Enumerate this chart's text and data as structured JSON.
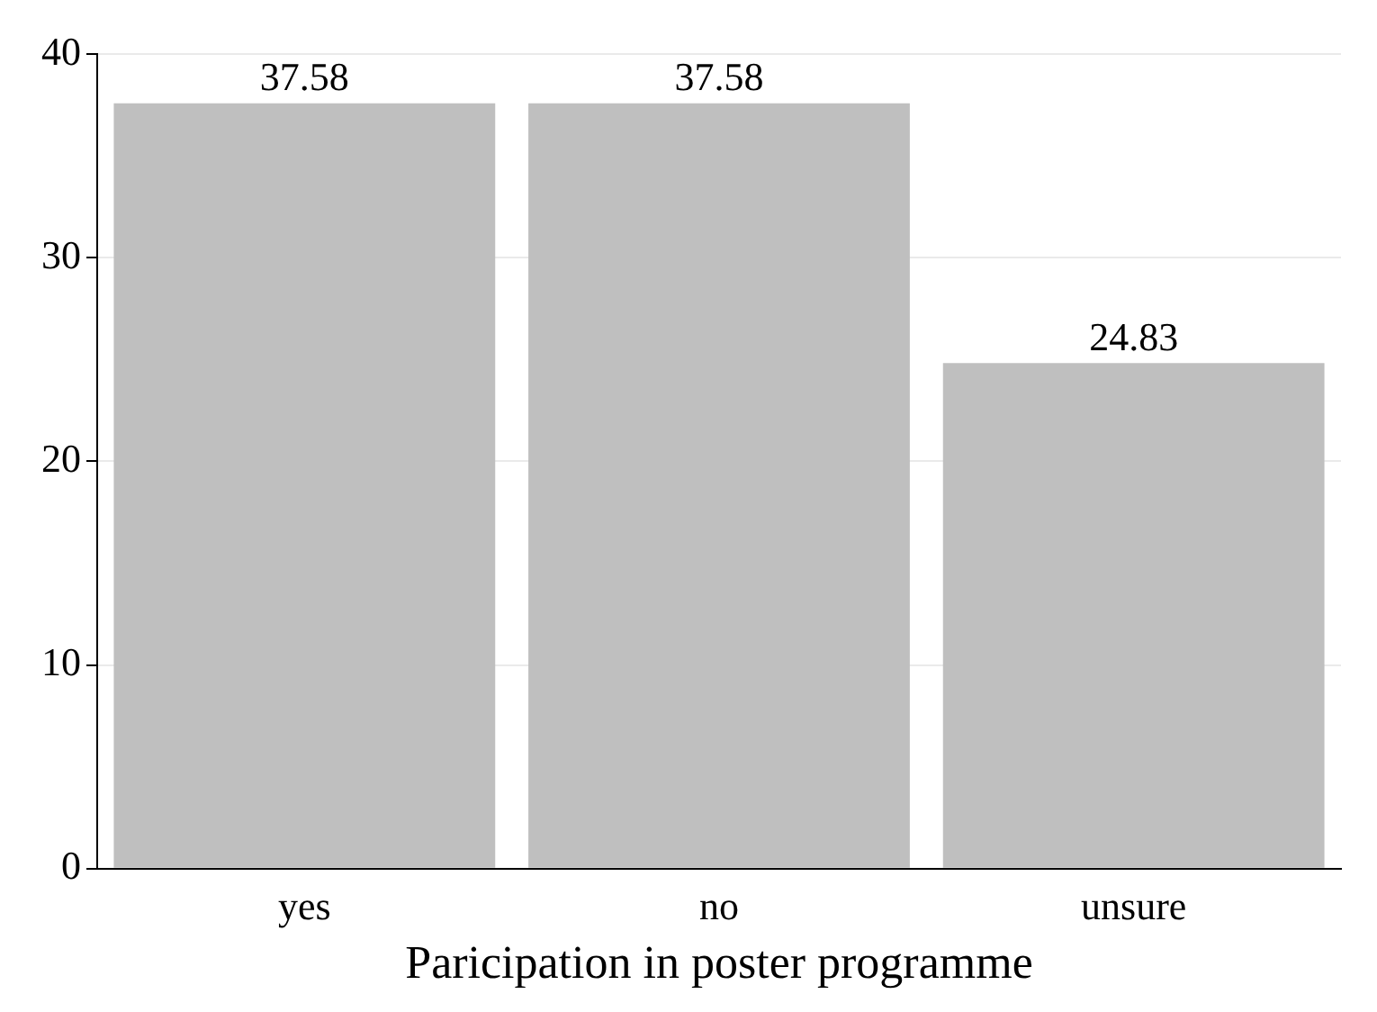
{
  "chart_data": {
    "type": "bar",
    "xlabel": "Paricipation in poster programme",
    "categories": [
      "yes",
      "no",
      "unsure"
    ],
    "values": [
      37.58,
      37.58,
      24.83
    ],
    "color": "#bfbfbf",
    "ylim": [
      0,
      40
    ],
    "yticks": [
      0,
      10,
      20,
      30,
      40
    ],
    "grid": "y",
    "data_labels": true,
    "legend": false
  }
}
